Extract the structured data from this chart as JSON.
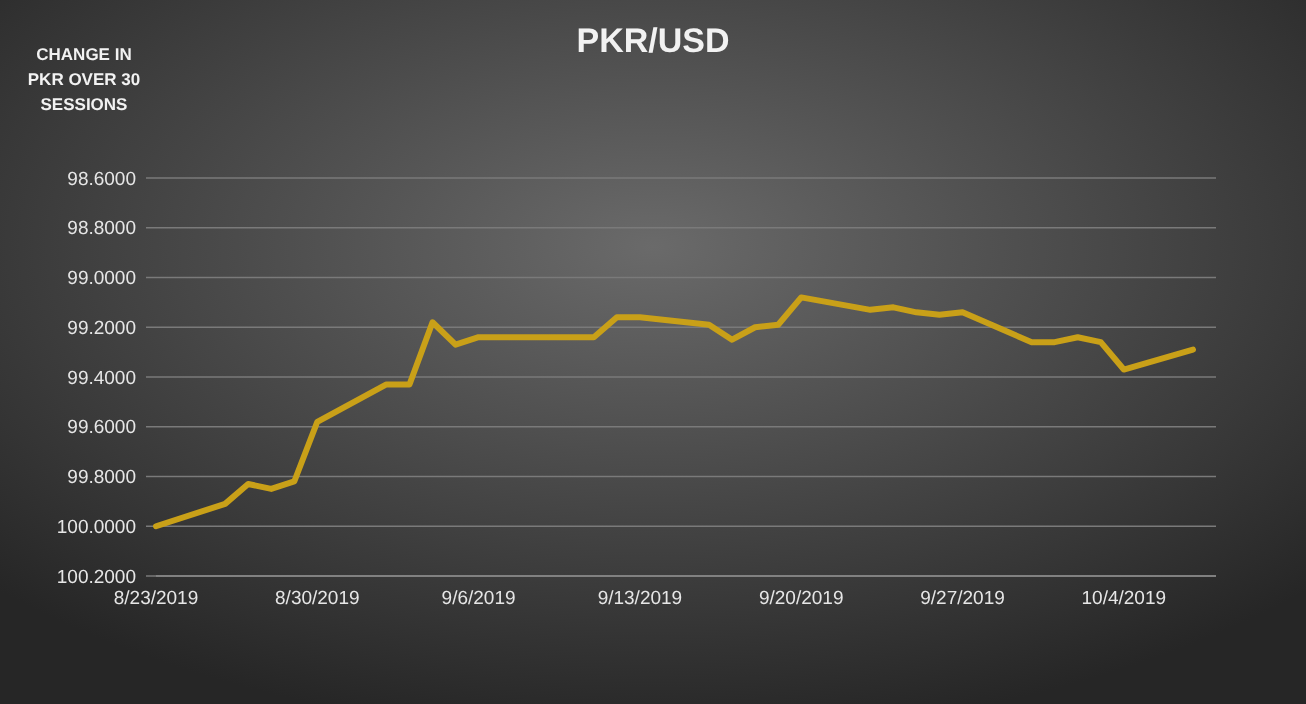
{
  "chart_data": {
    "type": "line",
    "title": "PKR/USD",
    "ylabel": "CHANGE IN PKR OVER 30 SESSIONS",
    "x": [
      "2019-08-23",
      "2019-08-26",
      "2019-08-27",
      "2019-08-28",
      "2019-08-29",
      "2019-08-30",
      "2019-09-02",
      "2019-09-03",
      "2019-09-04",
      "2019-09-05",
      "2019-09-06",
      "2019-09-11",
      "2019-09-12",
      "2019-09-13",
      "2019-09-16",
      "2019-09-17",
      "2019-09-18",
      "2019-09-19",
      "2019-09-20",
      "2019-09-23",
      "2019-09-24",
      "2019-09-25",
      "2019-09-26",
      "2019-09-27",
      "2019-09-30",
      "2019-10-01",
      "2019-10-02",
      "2019-10-03",
      "2019-10-04",
      "2019-10-07"
    ],
    "series": [
      {
        "color": "#c9a018",
        "values": [
          100.0,
          99.91,
          99.83,
          99.85,
          99.82,
          99.58,
          99.43,
          99.43,
          99.18,
          99.27,
          99.24,
          99.24,
          99.16,
          99.16,
          99.19,
          99.25,
          99.2,
          99.19,
          99.08,
          99.13,
          99.12,
          99.14,
          99.15,
          99.14,
          99.26,
          99.26,
          99.24,
          99.26,
          99.37,
          99.29
        ]
      }
    ],
    "xlim": [
      "2019-08-23",
      "2019-10-08"
    ],
    "xticks": [
      {
        "value": "2019-08-23",
        "label": "8/23/2019"
      },
      {
        "value": "2019-08-30",
        "label": "8/30/2019"
      },
      {
        "value": "2019-09-06",
        "label": "9/6/2019"
      },
      {
        "value": "2019-09-13",
        "label": "9/13/2019"
      },
      {
        "value": "2019-09-20",
        "label": "9/20/2019"
      },
      {
        "value": "2019-09-27",
        "label": "9/27/2019"
      },
      {
        "value": "2019-10-04",
        "label": "10/4/2019"
      }
    ],
    "ylim": [
      100.2,
      98.6
    ],
    "yticks": [
      {
        "value": 98.6,
        "label": "98.6000"
      },
      {
        "value": 98.8,
        "label": "98.8000"
      },
      {
        "value": 99.0,
        "label": "99.0000"
      },
      {
        "value": 99.2,
        "label": "99.2000"
      },
      {
        "value": 99.4,
        "label": "99.4000"
      },
      {
        "value": 99.6,
        "label": "99.6000"
      },
      {
        "value": 99.8,
        "label": "99.8000"
      },
      {
        "value": 100.0,
        "label": "100.0000"
      },
      {
        "value": 100.2,
        "label": "100.2000"
      }
    ],
    "grid": "y",
    "marker": "none",
    "line_style": "solid"
  }
}
